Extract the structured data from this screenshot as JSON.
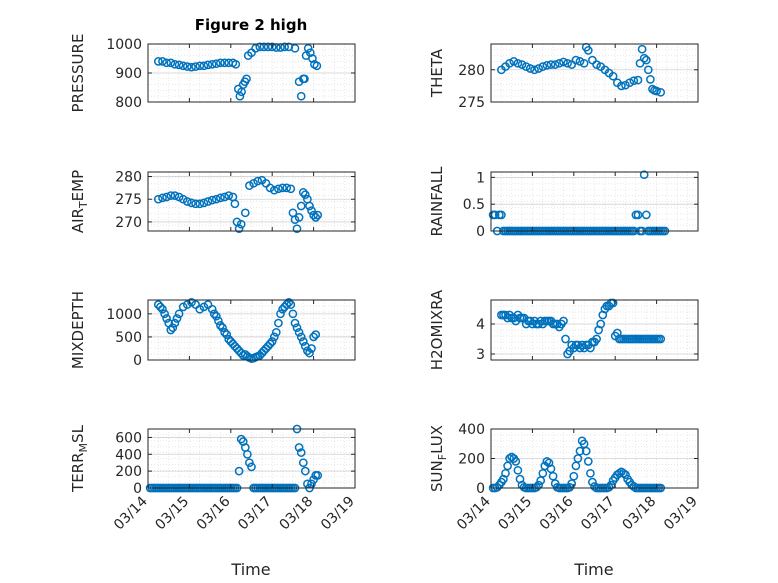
{
  "title": "Figure 2 high",
  "marker_color": "#0072BD",
  "x_tick_labels": [
    "03/14",
    "03/15",
    "03/16",
    "03/17",
    "03/18",
    "03/19"
  ],
  "x_axis_label": "Time",
  "chart_data": [
    {
      "id": "pressure",
      "type": "scatter",
      "ylabel_main": "PRESSURE",
      "ylabel_sub": "",
      "ylabel_tail": "",
      "ylim": [
        800,
        1000
      ],
      "yticks": [
        800,
        900,
        1000
      ],
      "xlim": [
        14,
        19
      ],
      "x": [
        14.25,
        14.35,
        14.45,
        14.55,
        14.65,
        14.75,
        14.85,
        14.95,
        15.05,
        15.15,
        15.25,
        15.35,
        15.45,
        15.55,
        15.65,
        15.75,
        15.85,
        15.95,
        16.05,
        16.12,
        16.18,
        16.22,
        16.26,
        16.3,
        16.34,
        16.38,
        16.42,
        16.5,
        16.6,
        16.7,
        16.8,
        16.9,
        17.0,
        17.1,
        17.2,
        17.3,
        17.4,
        17.55,
        17.65,
        17.7,
        17.75,
        17.78,
        17.82,
        17.87,
        17.92,
        17.97,
        18.02,
        18.08
      ],
      "y": [
        940,
        940,
        935,
        935,
        930,
        928,
        925,
        922,
        920,
        922,
        925,
        925,
        928,
        930,
        932,
        935,
        935,
        935,
        935,
        930,
        845,
        820,
        835,
        860,
        870,
        880,
        960,
        970,
        985,
        990,
        990,
        990,
        990,
        988,
        988,
        990,
        990,
        985,
        870,
        820,
        880,
        880,
        960,
        985,
        970,
        950,
        930,
        925
      ]
    },
    {
      "id": "theta",
      "type": "scatter",
      "ylabel_main": "THETA",
      "ylabel_sub": "",
      "ylabel_tail": "",
      "ylim": [
        275,
        284
      ],
      "yticks": [
        275,
        280
      ],
      "xlim": [
        14,
        19
      ],
      "x": [
        14.25,
        14.35,
        14.45,
        14.55,
        14.65,
        14.75,
        14.85,
        14.95,
        15.05,
        15.15,
        15.25,
        15.35,
        15.45,
        15.55,
        15.65,
        15.75,
        15.85,
        15.95,
        16.05,
        16.15,
        16.25,
        16.3,
        16.35,
        16.45,
        16.55,
        16.65,
        16.75,
        16.85,
        16.95,
        17.05,
        17.15,
        17.25,
        17.35,
        17.45,
        17.55,
        17.6,
        17.65,
        17.7,
        17.75,
        17.8,
        17.85,
        17.9,
        17.95,
        18.0,
        18.1
      ],
      "y": [
        280.0,
        280.5,
        281.0,
        281.3,
        281.0,
        280.8,
        280.5,
        280.2,
        280.0,
        280.2,
        280.5,
        280.7,
        280.8,
        280.8,
        281.0,
        281.2,
        281.0,
        280.8,
        281.5,
        281.3,
        281.0,
        283.5,
        283.0,
        281.5,
        280.8,
        280.5,
        280.0,
        279.5,
        279.0,
        278.0,
        277.5,
        277.6,
        278.0,
        278.3,
        278.4,
        281.0,
        283.2,
        281.8,
        281.5,
        280.0,
        278.5,
        277.0,
        276.8,
        276.7,
        276.5
      ]
    },
    {
      "id": "air_temp",
      "type": "scatter",
      "ylabel_main": "AIR",
      "ylabel_sub": "T",
      "ylabel_tail": "EMP",
      "ylim": [
        268,
        281
      ],
      "yticks": [
        270,
        275,
        280
      ],
      "xlim": [
        14,
        19
      ],
      "x": [
        14.25,
        14.35,
        14.45,
        14.55,
        14.65,
        14.75,
        14.85,
        14.95,
        15.05,
        15.15,
        15.25,
        15.35,
        15.45,
        15.55,
        15.65,
        15.75,
        15.85,
        15.95,
        16.05,
        16.1,
        16.15,
        16.2,
        16.25,
        16.35,
        16.45,
        16.55,
        16.65,
        16.75,
        16.85,
        16.95,
        17.05,
        17.15,
        17.25,
        17.35,
        17.45,
        17.5,
        17.55,
        17.6,
        17.65,
        17.7,
        17.75,
        17.8,
        17.85,
        17.9,
        17.95,
        18.0,
        18.05,
        18.1
      ],
      "y": [
        275.0,
        275.3,
        275.5,
        275.8,
        275.8,
        275.5,
        275.0,
        274.5,
        274.2,
        274.0,
        274.0,
        274.2,
        274.5,
        274.8,
        275.0,
        275.3,
        275.5,
        275.8,
        275.5,
        274.0,
        270.0,
        268.5,
        269.5,
        272.0,
        278.0,
        278.5,
        279.0,
        279.2,
        278.5,
        277.5,
        277.0,
        277.3,
        277.5,
        277.5,
        277.3,
        272.0,
        270.5,
        268.5,
        271.0,
        273.5,
        276.5,
        276.0,
        275.0,
        273.5,
        272.5,
        271.5,
        271.0,
        271.5
      ]
    },
    {
      "id": "rainfall",
      "type": "scatter",
      "ylabel_main": "RAINFALL",
      "ylabel_sub": "",
      "ylabel_tail": "",
      "ylim": [
        0,
        1.1
      ],
      "yticks": [
        0,
        0.5,
        1
      ],
      "xlim": [
        14,
        19
      ],
      "x": [
        14.05,
        14.1,
        14.15,
        14.2,
        14.25,
        14.3,
        14.35,
        14.4,
        14.45,
        14.5,
        14.55,
        14.6,
        14.65,
        14.7,
        14.75,
        14.8,
        14.85,
        14.9,
        14.95,
        15.0,
        15.05,
        15.1,
        15.15,
        15.2,
        15.25,
        15.3,
        15.35,
        15.4,
        15.45,
        15.5,
        15.55,
        15.6,
        15.65,
        15.7,
        15.75,
        15.8,
        15.85,
        15.9,
        15.95,
        16.0,
        16.05,
        16.1,
        16.15,
        16.2,
        16.25,
        16.3,
        16.35,
        16.4,
        16.45,
        16.5,
        16.55,
        16.6,
        16.65,
        16.7,
        16.75,
        16.8,
        16.85,
        16.9,
        16.95,
        17.0,
        17.05,
        17.1,
        17.15,
        17.2,
        17.25,
        17.3,
        17.35,
        17.4,
        17.45,
        17.5,
        17.55,
        17.6,
        17.65,
        17.7,
        17.75,
        17.8,
        17.85,
        17.9,
        17.95,
        18.0,
        18.05,
        18.1,
        18.15,
        18.2
      ],
      "y": [
        0.3,
        0.3,
        0,
        0.3,
        0.3,
        0,
        0,
        0,
        0,
        0,
        0,
        0,
        0,
        0,
        0,
        0,
        0,
        0,
        0,
        0,
        0,
        0,
        0,
        0,
        0,
        0,
        0,
        0,
        0,
        0,
        0,
        0,
        0,
        0,
        0,
        0,
        0,
        0,
        0,
        0,
        0,
        0,
        0,
        0,
        0,
        0,
        0,
        0,
        0,
        0,
        0,
        0,
        0,
        0,
        0,
        0,
        0,
        0,
        0,
        0,
        0,
        0,
        0,
        0,
        0,
        0,
        0,
        0,
        0,
        0.3,
        0.3,
        0,
        0,
        1.05,
        0.3,
        0,
        0,
        0,
        0,
        0,
        0,
        0,
        0,
        0
      ]
    },
    {
      "id": "mixdepth",
      "type": "scatter",
      "ylabel_main": "MIXDEPTH",
      "ylabel_sub": "",
      "ylabel_tail": "",
      "ylim": [
        0,
        1300
      ],
      "yticks": [
        0,
        500,
        1000
      ],
      "xlim": [
        14,
        19
      ],
      "x": [
        14.25,
        14.3,
        14.35,
        14.4,
        14.45,
        14.5,
        14.55,
        14.6,
        14.65,
        14.7,
        14.75,
        14.85,
        14.95,
        15.05,
        15.15,
        15.25,
        15.35,
        15.45,
        15.55,
        15.6,
        15.65,
        15.7,
        15.75,
        15.8,
        15.85,
        15.9,
        15.95,
        16.0,
        16.05,
        16.1,
        16.15,
        16.2,
        16.25,
        16.3,
        16.35,
        16.4,
        16.45,
        16.5,
        16.55,
        16.6,
        16.65,
        16.7,
        16.75,
        16.8,
        16.85,
        16.9,
        16.95,
        17.0,
        17.05,
        17.1,
        17.15,
        17.2,
        17.25,
        17.3,
        17.35,
        17.4,
        17.45,
        17.5,
        17.55,
        17.6,
        17.65,
        17.7,
        17.75,
        17.8,
        17.85,
        17.9,
        17.95,
        18.0,
        18.05
      ],
      "y": [
        1200,
        1150,
        1100,
        1000,
        900,
        800,
        650,
        700,
        800,
        900,
        1000,
        1150,
        1200,
        1250,
        1200,
        1100,
        1150,
        1200,
        1100,
        1000,
        950,
        850,
        750,
        700,
        600,
        550,
        450,
        400,
        350,
        300,
        250,
        200,
        150,
        100,
        120,
        80,
        50,
        30,
        40,
        60,
        80,
        100,
        150,
        200,
        250,
        300,
        350,
        400,
        500,
        600,
        800,
        1000,
        1100,
        1150,
        1200,
        1250,
        1200,
        1000,
        800,
        700,
        600,
        500,
        400,
        300,
        200,
        150,
        250,
        500,
        550
      ]
    },
    {
      "id": "h2omixra",
      "type": "scatter",
      "ylabel_main": "H2OMIXRA",
      "ylabel_sub": "",
      "ylabel_tail": "",
      "ylim": [
        2.8,
        4.8
      ],
      "yticks": [
        3,
        4
      ],
      "xlim": [
        14,
        19
      ],
      "x": [
        14.25,
        14.3,
        14.35,
        14.4,
        14.45,
        14.5,
        14.55,
        14.6,
        14.65,
        14.7,
        14.75,
        14.8,
        14.85,
        14.9,
        14.95,
        15.0,
        15.05,
        15.1,
        15.15,
        15.2,
        15.25,
        15.3,
        15.35,
        15.4,
        15.45,
        15.5,
        15.55,
        15.6,
        15.65,
        15.7,
        15.75,
        15.8,
        15.85,
        15.9,
        15.95,
        16.0,
        16.05,
        16.1,
        16.15,
        16.2,
        16.25,
        16.3,
        16.35,
        16.4,
        16.45,
        16.5,
        16.55,
        16.6,
        16.65,
        16.7,
        16.75,
        16.8,
        16.85,
        16.9,
        16.95,
        17.0,
        17.05,
        17.1,
        17.15,
        17.2,
        17.25,
        17.3,
        17.35,
        17.4,
        17.45,
        17.5,
        17.55,
        17.6,
        17.65,
        17.7,
        17.75,
        17.8,
        17.85,
        17.9,
        17.95,
        18.0,
        18.05,
        18.1
      ],
      "y": [
        4.3,
        4.3,
        4.3,
        4.2,
        4.3,
        4.2,
        4.2,
        4.1,
        4.3,
        4.2,
        4.2,
        4.2,
        4.0,
        4.1,
        4.1,
        4.0,
        4.1,
        4.0,
        4.0,
        4.1,
        4.0,
        4.1,
        4.1,
        4.1,
        4.1,
        4.0,
        4.0,
        4.0,
        3.9,
        4.0,
        4.1,
        3.5,
        3.0,
        3.1,
        3.3,
        3.2,
        3.3,
        3.3,
        3.2,
        3.3,
        3.2,
        3.3,
        3.3,
        3.2,
        3.4,
        3.4,
        3.5,
        3.8,
        4.0,
        4.3,
        4.5,
        4.6,
        4.6,
        4.7,
        4.7,
        3.6,
        3.7,
        3.5,
        3.5,
        3.5,
        3.5,
        3.5,
        3.5,
        3.5,
        3.5,
        3.5,
        3.5,
        3.5,
        3.5,
        3.5,
        3.5,
        3.5,
        3.5,
        3.5,
        3.5,
        3.5,
        3.5,
        3.5
      ]
    },
    {
      "id": "terr_msl",
      "type": "scatter",
      "ylabel_main": "TERR",
      "ylabel_sub": "M",
      "ylabel_tail": "SL",
      "ylim": [
        0,
        700
      ],
      "yticks": [
        0,
        200,
        400,
        600
      ],
      "xlim": [
        14,
        19
      ],
      "x": [
        14.05,
        14.1,
        14.15,
        14.2,
        14.25,
        14.3,
        14.35,
        14.4,
        14.45,
        14.5,
        14.55,
        14.6,
        14.65,
        14.7,
        14.75,
        14.8,
        14.85,
        14.9,
        14.95,
        15.0,
        15.05,
        15.1,
        15.15,
        15.2,
        15.25,
        15.3,
        15.35,
        15.4,
        15.45,
        15.5,
        15.55,
        15.6,
        15.65,
        15.7,
        15.75,
        15.8,
        15.85,
        15.9,
        15.95,
        16.0,
        16.05,
        16.1,
        16.15,
        16.2,
        16.25,
        16.3,
        16.35,
        16.4,
        16.45,
        16.5,
        16.55,
        16.6,
        16.65,
        16.7,
        16.75,
        16.8,
        16.85,
        16.9,
        16.95,
        17.0,
        17.05,
        17.1,
        17.15,
        17.2,
        17.25,
        17.3,
        17.35,
        17.4,
        17.45,
        17.5,
        17.55,
        17.6,
        17.65,
        17.7,
        17.75,
        17.8,
        17.85,
        17.9,
        17.95,
        18.0,
        18.05,
        18.1
      ],
      "y": [
        0,
        0,
        0,
        0,
        0,
        0,
        0,
        0,
        0,
        0,
        0,
        0,
        0,
        0,
        0,
        0,
        0,
        0,
        0,
        0,
        0,
        0,
        0,
        0,
        0,
        0,
        0,
        0,
        0,
        0,
        0,
        0,
        0,
        0,
        0,
        0,
        0,
        0,
        0,
        0,
        0,
        0,
        0,
        200,
        580,
        550,
        480,
        400,
        300,
        250,
        0,
        0,
        0,
        0,
        0,
        0,
        0,
        0,
        0,
        0,
        0,
        0,
        0,
        0,
        0,
        0,
        0,
        0,
        0,
        0,
        0,
        700,
        480,
        420,
        300,
        200,
        50,
        0,
        50,
        100,
        150,
        150
      ]
    },
    {
      "id": "sun_flux",
      "type": "scatter",
      "ylabel_main": "SUN",
      "ylabel_sub": "F",
      "ylabel_tail": "LUX",
      "ylim": [
        0,
        400
      ],
      "yticks": [
        0,
        200,
        400
      ],
      "xlim": [
        14,
        19
      ],
      "x": [
        14.05,
        14.1,
        14.15,
        14.2,
        14.25,
        14.3,
        14.35,
        14.4,
        14.45,
        14.5,
        14.55,
        14.6,
        14.65,
        14.7,
        14.75,
        14.8,
        14.85,
        14.9,
        14.95,
        15.0,
        15.05,
        15.1,
        15.15,
        15.2,
        15.25,
        15.3,
        15.35,
        15.4,
        15.45,
        15.5,
        15.55,
        15.6,
        15.65,
        15.7,
        15.75,
        15.8,
        15.85,
        15.9,
        15.95,
        16.0,
        16.05,
        16.1,
        16.15,
        16.2,
        16.25,
        16.3,
        16.35,
        16.4,
        16.45,
        16.5,
        16.55,
        16.6,
        16.65,
        16.7,
        16.75,
        16.8,
        16.85,
        16.9,
        16.95,
        17.0,
        17.05,
        17.1,
        17.15,
        17.2,
        17.25,
        17.3,
        17.35,
        17.4,
        17.45,
        17.5,
        17.55,
        17.6,
        17.65,
        17.7,
        17.75,
        17.8,
        17.85,
        17.9,
        17.95,
        18.0,
        18.05,
        18.1
      ],
      "y": [
        0,
        0,
        5,
        20,
        40,
        60,
        100,
        150,
        200,
        210,
        200,
        180,
        120,
        60,
        20,
        5,
        0,
        0,
        0,
        0,
        0,
        5,
        20,
        50,
        100,
        150,
        180,
        170,
        130,
        80,
        30,
        5,
        0,
        0,
        0,
        0,
        0,
        5,
        30,
        80,
        150,
        200,
        250,
        320,
        300,
        250,
        180,
        100,
        40,
        10,
        0,
        0,
        0,
        0,
        0,
        0,
        5,
        20,
        50,
        70,
        90,
        100,
        110,
        100,
        90,
        60,
        40,
        20,
        10,
        0,
        0,
        0,
        0,
        0,
        0,
        0,
        0,
        0,
        0,
        0,
        0,
        0
      ]
    }
  ]
}
